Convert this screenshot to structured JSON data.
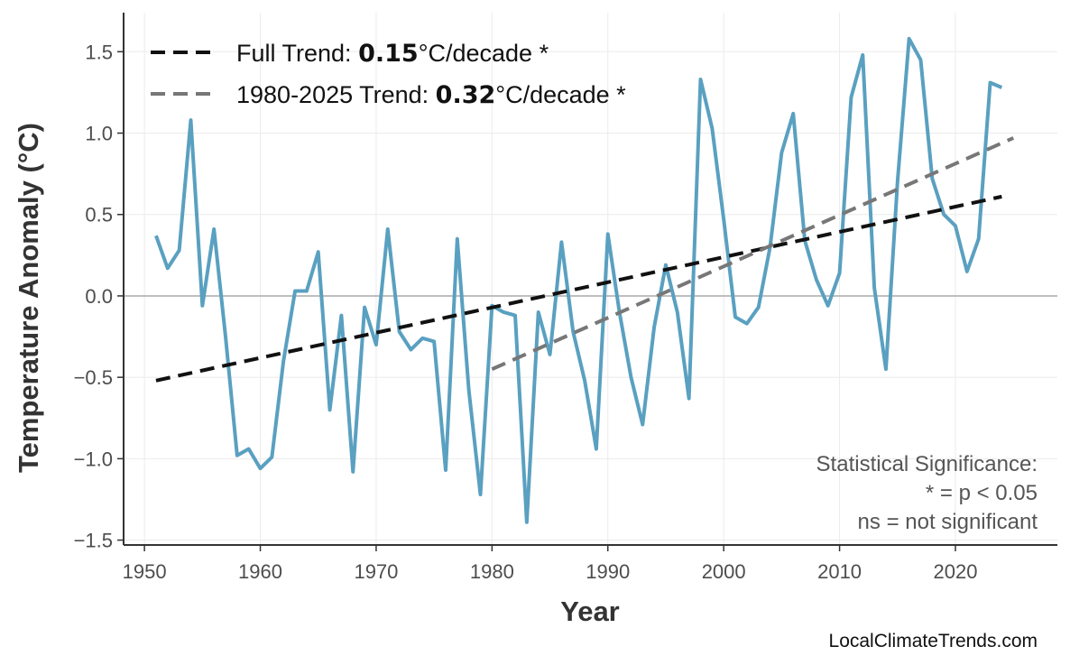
{
  "chart_data": {
    "type": "line",
    "xlabel": "Year",
    "ylabel": "Temperature Anomaly (°C)",
    "xlim": [
      1948.2,
      2028.8
    ],
    "ylim": [
      -1.53,
      1.74
    ],
    "xticks": [
      1950,
      1960,
      1970,
      1980,
      1990,
      2000,
      2010,
      2020
    ],
    "yticks": [
      -1.5,
      -1.0,
      -0.5,
      0.0,
      0.5,
      1.0,
      1.5
    ],
    "ytick_labels": [
      "−1.5",
      "−1.0",
      "−0.5",
      "0.0",
      "0.5",
      "1.0",
      "1.5"
    ],
    "grid": true,
    "zero_line": true,
    "legend_position": "top-left",
    "colors": {
      "series": "#5aa0c0",
      "full_trend": "#111111",
      "recent_trend": "#777777",
      "zero_line": "#aaaaaa"
    },
    "series": [
      {
        "x": [
          1951,
          1952,
          1953,
          1954,
          1955,
          1956,
          1957,
          1958,
          1959,
          1960,
          1961,
          1962,
          1963,
          1964,
          1965,
          1966,
          1967,
          1968,
          1969,
          1970,
          1971,
          1972,
          1973,
          1974,
          1975,
          1976,
          1977,
          1978,
          1979,
          1980,
          1981,
          1982,
          1983,
          1984,
          1985,
          1986,
          1987,
          1988,
          1989,
          1990,
          1991,
          1992,
          1993,
          1994,
          1995,
          1996,
          1997,
          1998,
          1999,
          2000,
          2001,
          2002,
          2003,
          2004,
          2005,
          2006,
          2007,
          2008,
          2009,
          2010,
          2011,
          2012,
          2013,
          2014,
          2015,
          2016,
          2017,
          2018,
          2019,
          2020,
          2021,
          2022,
          2023,
          2024
        ],
        "values": [
          0.37,
          0.17,
          0.28,
          1.08,
          -0.06,
          0.41,
          -0.25,
          -0.98,
          -0.94,
          -1.06,
          -0.99,
          -0.4,
          0.03,
          0.03,
          0.27,
          -0.7,
          -0.12,
          -1.08,
          -0.07,
          -0.3,
          0.41,
          -0.22,
          -0.33,
          -0.26,
          -0.28,
          -1.07,
          0.35,
          -0.58,
          -1.22,
          -0.06,
          -0.1,
          -0.12,
          -1.39,
          -0.1,
          -0.36,
          0.33,
          -0.22,
          -0.52,
          -0.94,
          0.38,
          -0.1,
          -0.5,
          -0.79,
          -0.19,
          0.19,
          -0.1,
          -0.63,
          1.33,
          1.03,
          0.47,
          -0.13,
          -0.17,
          -0.07,
          0.3,
          0.88,
          1.12,
          0.34,
          0.1,
          -0.06,
          0.14,
          1.22,
          1.48,
          0.05,
          -0.45,
          0.7,
          1.58,
          1.45,
          0.72,
          0.5,
          0.43,
          0.15,
          0.35,
          1.31,
          1.28
        ]
      }
    ],
    "trends": [
      {
        "label_prefix": "Full Trend: ",
        "value": "0.15",
        "label_suffix": "°C/decade *",
        "x": [
          1951,
          2024
        ],
        "y": [
          -0.52,
          0.61
        ]
      },
      {
        "label_prefix": "1980-2025 Trend: ",
        "value": "0.32",
        "label_suffix": "°C/decade *",
        "x": [
          1980,
          2025
        ],
        "y": [
          -0.45,
          0.97
        ]
      }
    ],
    "annotation": [
      "Statistical Significance:",
      "* = p < 0.05",
      "ns = not significant"
    ]
  },
  "watermark": "LocalClimateTrends.com"
}
